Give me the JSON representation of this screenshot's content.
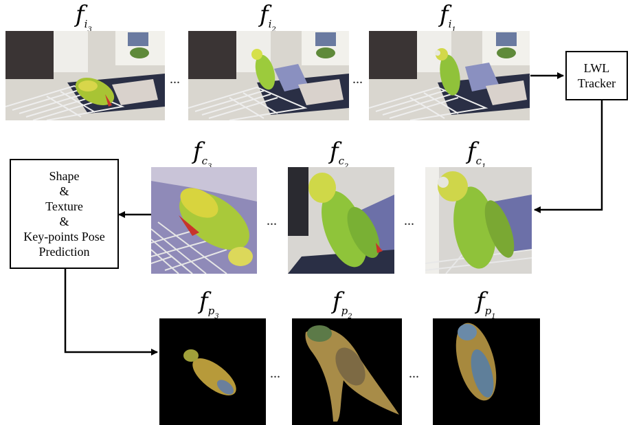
{
  "input_frames": {
    "labels": [
      {
        "base": "f",
        "sub": "i",
        "idx": "3"
      },
      {
        "base": "f",
        "sub": "i",
        "idx": "2"
      },
      {
        "base": "f",
        "sub": "i",
        "idx": "1"
      }
    ],
    "ellipsis": "..."
  },
  "crop_frames": {
    "labels": [
      {
        "base": "f",
        "sub": "c",
        "idx": "3"
      },
      {
        "base": "f",
        "sub": "c",
        "idx": "2"
      },
      {
        "base": "f",
        "sub": "c",
        "idx": "1"
      }
    ],
    "ellipsis": "..."
  },
  "pred_frames": {
    "labels": [
      {
        "base": "f",
        "sub": "p",
        "idx": "3"
      },
      {
        "base": "f",
        "sub": "p",
        "idx": "2"
      },
      {
        "base": "f",
        "sub": "p",
        "idx": "1"
      }
    ],
    "ellipsis": "..."
  },
  "tracker_box": {
    "text": "LWL\nTracker"
  },
  "prediction_box": {
    "text": "Shape\n&\nTexture\n&\nKey-points Pose\nPrediction"
  },
  "colors": {
    "arrow": "#000000",
    "pred_background": "#000000",
    "parrot_green": "#7cc23a",
    "parrot_yellow": "#d6d62a",
    "sofa": "#2a2f45"
  }
}
